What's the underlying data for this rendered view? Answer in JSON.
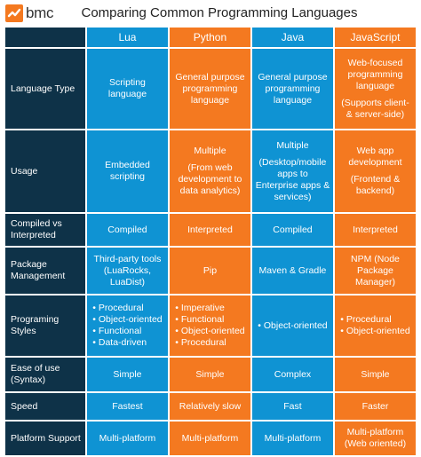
{
  "header": {
    "logo_text": "bmc",
    "title": "Comparing Common Programming Languages"
  },
  "columns": [
    "Lua",
    "Python",
    "Java",
    "JavaScript"
  ],
  "rows": [
    {
      "label": "Language Type",
      "cells": [
        [
          "Scripting",
          "language"
        ],
        [
          "General purpose",
          "programming",
          "language"
        ],
        [
          "General purpose",
          "programming",
          "language"
        ],
        [
          "Web-focused",
          "programming",
          "language",
          "",
          "(Supports client-",
          "& server-side)"
        ]
      ]
    },
    {
      "label": "Usage",
      "cells": [
        [
          "Embedded",
          "scripting"
        ],
        [
          "Multiple",
          "",
          "(From web",
          "development to",
          "data analytics)"
        ],
        [
          "Multiple",
          "",
          "(Desktop/mobile",
          "apps to",
          "Enterprise apps &",
          "services)"
        ],
        [
          "Web app",
          "development",
          "",
          "(Frontend &",
          "backend)"
        ]
      ]
    },
    {
      "label": "Compiled vs Interpreted",
      "cells": [
        [
          "Compiled"
        ],
        [
          "Interpreted"
        ],
        [
          "Compiled"
        ],
        [
          "Interpreted"
        ]
      ]
    },
    {
      "label": "Package Management",
      "cells": [
        [
          "Third-party tools",
          "(LuaRocks,",
          "LuaDist)"
        ],
        [
          "Pip"
        ],
        [
          "Maven & Gradle"
        ],
        [
          "NPM (Node",
          "Package",
          "Manager)"
        ]
      ]
    },
    {
      "label": "Programing Styles",
      "bullets": [
        [
          "Procedural",
          "Object-oriented",
          "Functional",
          "Data-driven"
        ],
        [
          "Imperative",
          "Functional",
          "Object-oriented",
          "Procedural"
        ],
        [
          "Object-oriented"
        ],
        [
          "Procedural",
          "Object-oriented"
        ]
      ]
    },
    {
      "label": "Ease of use (Syntax)",
      "cells": [
        [
          "Simple"
        ],
        [
          "Simple"
        ],
        [
          "Complex"
        ],
        [
          "Simple"
        ]
      ]
    },
    {
      "label": "Speed",
      "cells": [
        [
          "Fastest"
        ],
        [
          "Relatively slow"
        ],
        [
          "Fast"
        ],
        [
          "Faster"
        ]
      ]
    },
    {
      "label": "Platform Support",
      "cells": [
        [
          "Multi-platform"
        ],
        [
          "Multi-platform"
        ],
        [
          "Multi-platform"
        ],
        [
          "Multi-platform",
          "(Web oriented)"
        ]
      ]
    }
  ],
  "colors": {
    "row_header": "#0e3248",
    "blue": "#0f93d3",
    "orange": "#f47920",
    "logo_accent": "#f47920"
  }
}
